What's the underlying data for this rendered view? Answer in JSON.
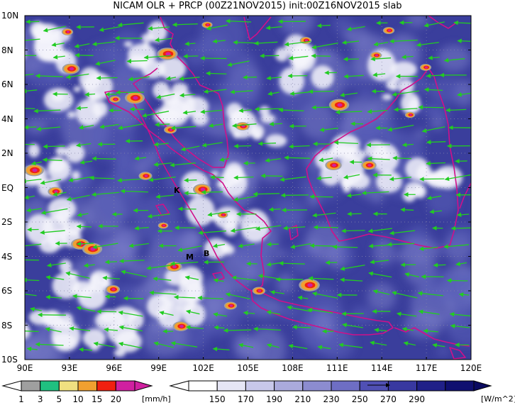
{
  "title": "NICAM OLR + PRCP (00Z21NOV2015) init:00Z16NOV2015 slab",
  "lat_labels": [
    "10N",
    "8N",
    "6N",
    "4N",
    "2N",
    "EQ",
    "2S",
    "4S",
    "6S",
    "8S",
    "10S"
  ],
  "lon_labels": [
    "90E",
    "93E",
    "96E",
    "99E",
    "102E",
    "105E",
    "108E",
    "111E",
    "114E",
    "117E",
    "120E"
  ],
  "place_labels": {
    "k": "K",
    "m": "M",
    "b": "B"
  },
  "prcp_colorbar": {
    "labels": [
      "1",
      "3",
      "5",
      "10",
      "15",
      "20"
    ],
    "unit": "[mm/h]",
    "colors": [
      "#9f9f9f",
      "#20c080",
      "#f0e080",
      "#f0a030",
      "#f02010",
      "#d020a0"
    ]
  },
  "olr_colorbar": {
    "labels": [
      "150",
      "170",
      "190",
      "210",
      "230",
      "250",
      "270",
      "290"
    ],
    "unit": "[W/m^2]",
    "colors": [
      "#ffffff",
      "#e6e6f5",
      "#c8c8ea",
      "#aaaadc",
      "#8c8cd0",
      "#6e6ec4",
      "#5050b4",
      "#3838a0",
      "#202088",
      "#101070"
    ]
  },
  "colors": {
    "wind_vector": "#22cc22",
    "coastline": "#d0108a",
    "olr_dark": "#2a2e90",
    "olr_mid": "#5a5eb8",
    "cloud": "#f4f4fb"
  }
}
